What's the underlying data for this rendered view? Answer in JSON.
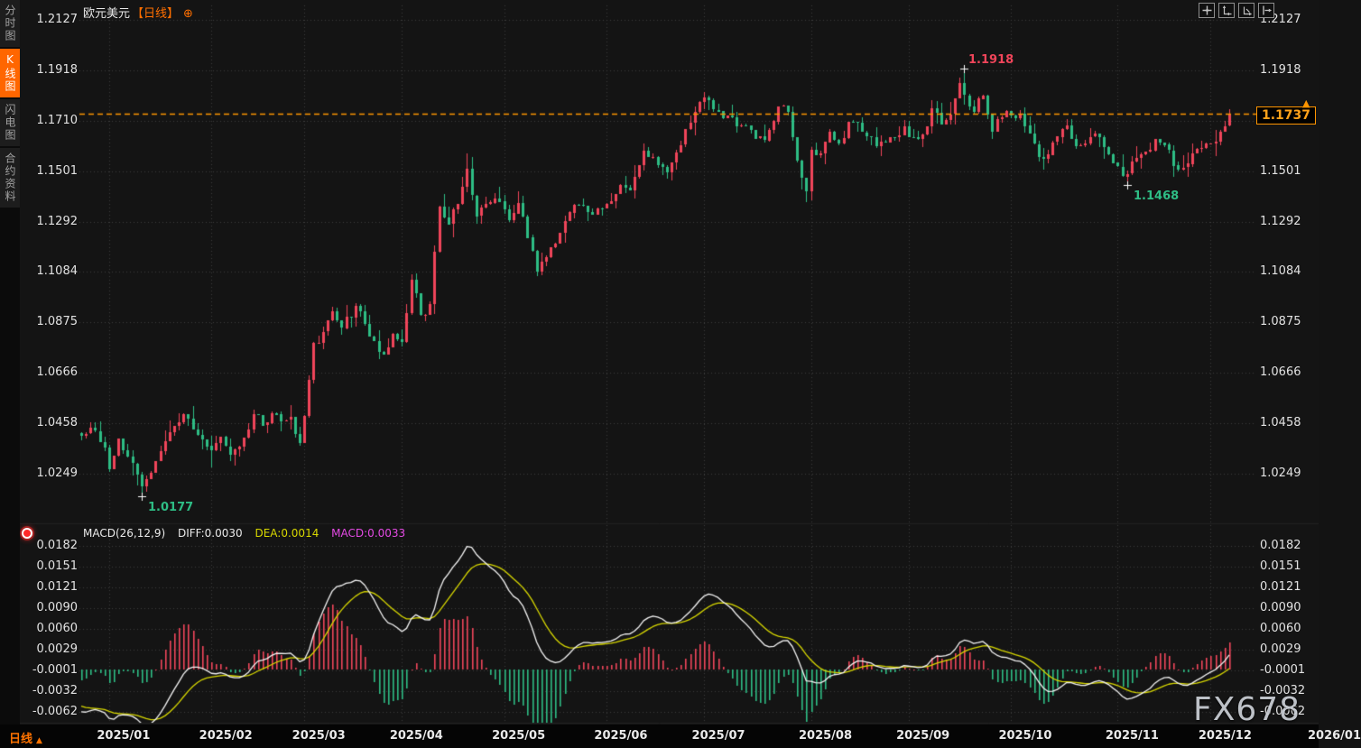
{
  "header": {
    "symbol": "欧元美元",
    "period": "【日线】"
  },
  "icons": {
    "gear": "⊕",
    "period_arrow": "▲",
    "price_marker": "▲"
  },
  "sidebar": {
    "items": [
      {
        "label": "分时图",
        "active": false
      },
      {
        "label": "K线图",
        "active": true
      },
      {
        "label": "闪电图",
        "active": false
      },
      {
        "label": "合约资料",
        "active": false
      }
    ]
  },
  "toolbar": {
    "buttons": [
      {
        "name": "crosshair"
      },
      {
        "name": "auto-scale-price"
      },
      {
        "name": "auto-scale-time"
      },
      {
        "name": "scroll-to-latest"
      }
    ]
  },
  "bottom_bar": {
    "period_label": "日线"
  },
  "watermark": {
    "text": "FX678"
  },
  "colors": {
    "up": "#f0455a",
    "down": "#2ebd85",
    "grid": "#3e3e3e",
    "accent": "#ff6f00",
    "price_line": "#ff9800",
    "price_label_text": "#ffa21a",
    "diff_line": "#f5f5f5",
    "dea_line": "#d8d800",
    "macd_value": "#e44ae4",
    "axis_text": "#e2e2e2",
    "cross_marker": "#ffffff",
    "sidebar_active_bg": "#ff6600"
  },
  "chart_data": {
    "type": "candlestick_with_macd",
    "title": "欧元美元 日线",
    "price_axis": {
      "ticks": [
        "1.2127",
        "1.1918",
        "1.1710",
        "1.1501",
        "1.1292",
        "1.1084",
        "1.0875",
        "1.0666",
        "1.0458",
        "1.0249"
      ]
    },
    "macd_axis": {
      "ticks": [
        "0.0182",
        "0.0151",
        "0.0121",
        "0.0090",
        "0.0060",
        "0.0029",
        "-0.0001",
        "-0.0032",
        "-0.0062"
      ]
    },
    "x_axis": {
      "labels": [
        "2025/01",
        "2025/02",
        "2025/03",
        "2025/04",
        "2025/05",
        "2025/06",
        "2025/07",
        "2025/08",
        "2025/09",
        "2025/10",
        "2025/11",
        "2025/12"
      ],
      "edge_partial_label": "2026/01"
    },
    "current_price": 1.1737,
    "current_price_label": "1.1737",
    "macd_readout": {
      "name": "MACD(26,12,9)",
      "diff": "DIFF:0.0030",
      "dea": "DEA:0.0014",
      "macd": "MACD:0.0033"
    },
    "annotations": [
      {
        "date": "2025-09-17",
        "text": "1.1918",
        "kind": "high"
      },
      {
        "date": "2025-11-05",
        "text": "1.1468",
        "kind": "low"
      },
      {
        "date": "2025-01-13",
        "text": "1.0177",
        "kind": "low"
      }
    ],
    "holidays": [
      "2024-12-25",
      "2025-01-01"
    ],
    "date_range": {
      "start": "2024-12-23",
      "end": "2025-12-05"
    },
    "candle_anchors": [
      [
        "2024-12-23",
        1.0405
      ],
      [
        "2024-12-27",
        1.0425
      ],
      [
        "2024-12-31",
        1.0355
      ],
      [
        "2025-01-02",
        1.0267
      ],
      [
        "2025-01-06",
        1.0392
      ],
      [
        "2025-01-08",
        1.0318
      ],
      [
        "2025-01-10",
        1.0244
      ],
      [
        "2025-01-13",
        1.0195,
        1.0177,
        null
      ],
      [
        "2025-01-16",
        1.03
      ],
      [
        "2025-01-21",
        1.042
      ],
      [
        "2025-01-24",
        1.0495
      ],
      [
        "2025-01-28",
        1.0432
      ],
      [
        "2025-01-31",
        1.0362
      ],
      [
        "2025-02-03",
        1.0345,
        1.0272,
        null
      ],
      [
        "2025-02-05",
        1.04
      ],
      [
        "2025-02-07",
        1.0328
      ],
      [
        "2025-02-11",
        1.036
      ],
      [
        "2025-02-14",
        1.0493
      ],
      [
        "2025-02-18",
        1.0448
      ],
      [
        "2025-02-20",
        1.05
      ],
      [
        "2025-02-24",
        1.0465
      ],
      [
        "2025-02-26",
        1.0482
      ],
      [
        "2025-02-28",
        1.0375
      ],
      [
        "2025-03-03",
        1.0486
      ],
      [
        "2025-03-05",
        1.079
      ],
      [
        "2025-03-07",
        1.0835
      ],
      [
        "2025-03-11",
        1.092
      ],
      [
        "2025-03-13",
        1.0851
      ],
      [
        "2025-03-18",
        1.0944,
        null,
        1.0954
      ],
      [
        "2025-03-21",
        1.0815
      ],
      [
        "2025-03-26",
        1.0742
      ],
      [
        "2025-03-28",
        1.0827
      ],
      [
        "2025-04-01",
        1.0792
      ],
      [
        "2025-04-03",
        1.1052
      ],
      [
        "2025-04-07",
        1.0905
      ],
      [
        "2025-04-09",
        1.095
      ],
      [
        "2025-04-11",
        1.1355
      ],
      [
        "2025-04-15",
        1.128
      ],
      [
        "2025-04-17",
        1.1365
      ],
      [
        "2025-04-21",
        1.151,
        null,
        1.1573
      ],
      [
        "2025-04-23",
        1.1315
      ],
      [
        "2025-04-25",
        1.1365
      ],
      [
        "2025-04-29",
        1.1388
      ],
      [
        "2025-05-02",
        1.1295
      ],
      [
        "2025-05-06",
        1.137
      ],
      [
        "2025-05-08",
        1.1225
      ],
      [
        "2025-05-12",
        1.1085,
        1.1065,
        null
      ],
      [
        "2025-05-15",
        1.1185
      ],
      [
        "2025-05-19",
        1.1245
      ],
      [
        "2025-05-21",
        1.133
      ],
      [
        "2025-05-23",
        1.136
      ],
      [
        "2025-05-27",
        1.133
      ],
      [
        "2025-05-30",
        1.1345
      ],
      [
        "2025-06-03",
        1.1375
      ],
      [
        "2025-06-05",
        1.1445
      ],
      [
        "2025-06-09",
        1.142
      ],
      [
        "2025-06-12",
        1.1585
      ],
      [
        "2025-06-16",
        1.156
      ],
      [
        "2025-06-19",
        1.1495
      ],
      [
        "2025-06-23",
        1.1578
      ],
      [
        "2025-06-26",
        1.17
      ],
      [
        "2025-06-30",
        1.1787
      ],
      [
        "2025-07-01",
        1.1805,
        null,
        1.183
      ],
      [
        "2025-07-03",
        1.1755
      ],
      [
        "2025-07-07",
        1.172
      ],
      [
        "2025-07-09",
        1.1722
      ],
      [
        "2025-07-11",
        1.169
      ],
      [
        "2025-07-16",
        1.1635
      ],
      [
        "2025-07-18",
        1.1628
      ],
      [
        "2025-07-23",
        1.177
      ],
      [
        "2025-07-25",
        1.1745
      ],
      [
        "2025-07-29",
        1.1545
      ],
      [
        "2025-07-31",
        1.1417,
        1.1392,
        null
      ],
      [
        "2025-08-01",
        1.1588
      ],
      [
        "2025-08-05",
        1.1575
      ],
      [
        "2025-08-07",
        1.1665
      ],
      [
        "2025-08-11",
        1.1615
      ],
      [
        "2025-08-13",
        1.1705
      ],
      [
        "2025-08-15",
        1.17
      ],
      [
        "2025-08-19",
        1.1645
      ],
      [
        "2025-08-21",
        1.1605
      ],
      [
        "2025-08-25",
        1.162
      ],
      [
        "2025-08-27",
        1.164
      ],
      [
        "2025-08-29",
        1.1685
      ],
      [
        "2025-09-02",
        1.164
      ],
      [
        "2025-09-04",
        1.1652
      ],
      [
        "2025-09-08",
        1.176
      ],
      [
        "2025-09-10",
        1.1695
      ],
      [
        "2025-09-12",
        1.1735
      ],
      [
        "2025-09-16",
        1.1865
      ],
      [
        "2025-09-17",
        1.1815,
        null,
        1.1918
      ],
      [
        "2025-09-19",
        1.1745
      ],
      [
        "2025-09-23",
        1.1815
      ],
      [
        "2025-09-25",
        1.1665
      ],
      [
        "2025-09-29",
        1.1725
      ],
      [
        "2025-10-01",
        1.173
      ],
      [
        "2025-10-03",
        1.174
      ],
      [
        "2025-10-07",
        1.1655
      ],
      [
        "2025-10-09",
        1.156,
        1.1542,
        null
      ],
      [
        "2025-10-13",
        1.157
      ],
      [
        "2025-10-15",
        1.1645
      ],
      [
        "2025-10-17",
        1.169
      ],
      [
        "2025-10-21",
        1.1605
      ],
      [
        "2025-10-23",
        1.1615
      ],
      [
        "2025-10-27",
        1.1655
      ],
      [
        "2025-10-29",
        1.16
      ],
      [
        "2025-10-31",
        1.1535
      ],
      [
        "2025-11-04",
        1.148
      ],
      [
        "2025-11-05",
        1.149,
        1.1468,
        null
      ],
      [
        "2025-11-07",
        1.1555
      ],
      [
        "2025-11-11",
        1.158
      ],
      [
        "2025-11-13",
        1.1635
      ],
      [
        "2025-11-17",
        1.161
      ],
      [
        "2025-11-19",
        1.1525
      ],
      [
        "2025-11-21",
        1.1515
      ],
      [
        "2025-11-25",
        1.1575
      ],
      [
        "2025-11-27",
        1.1595
      ],
      [
        "2025-12-01",
        1.1615
      ],
      [
        "2025-12-03",
        1.1665
      ],
      [
        "2025-12-05",
        1.1737,
        null,
        1.175
      ]
    ]
  }
}
